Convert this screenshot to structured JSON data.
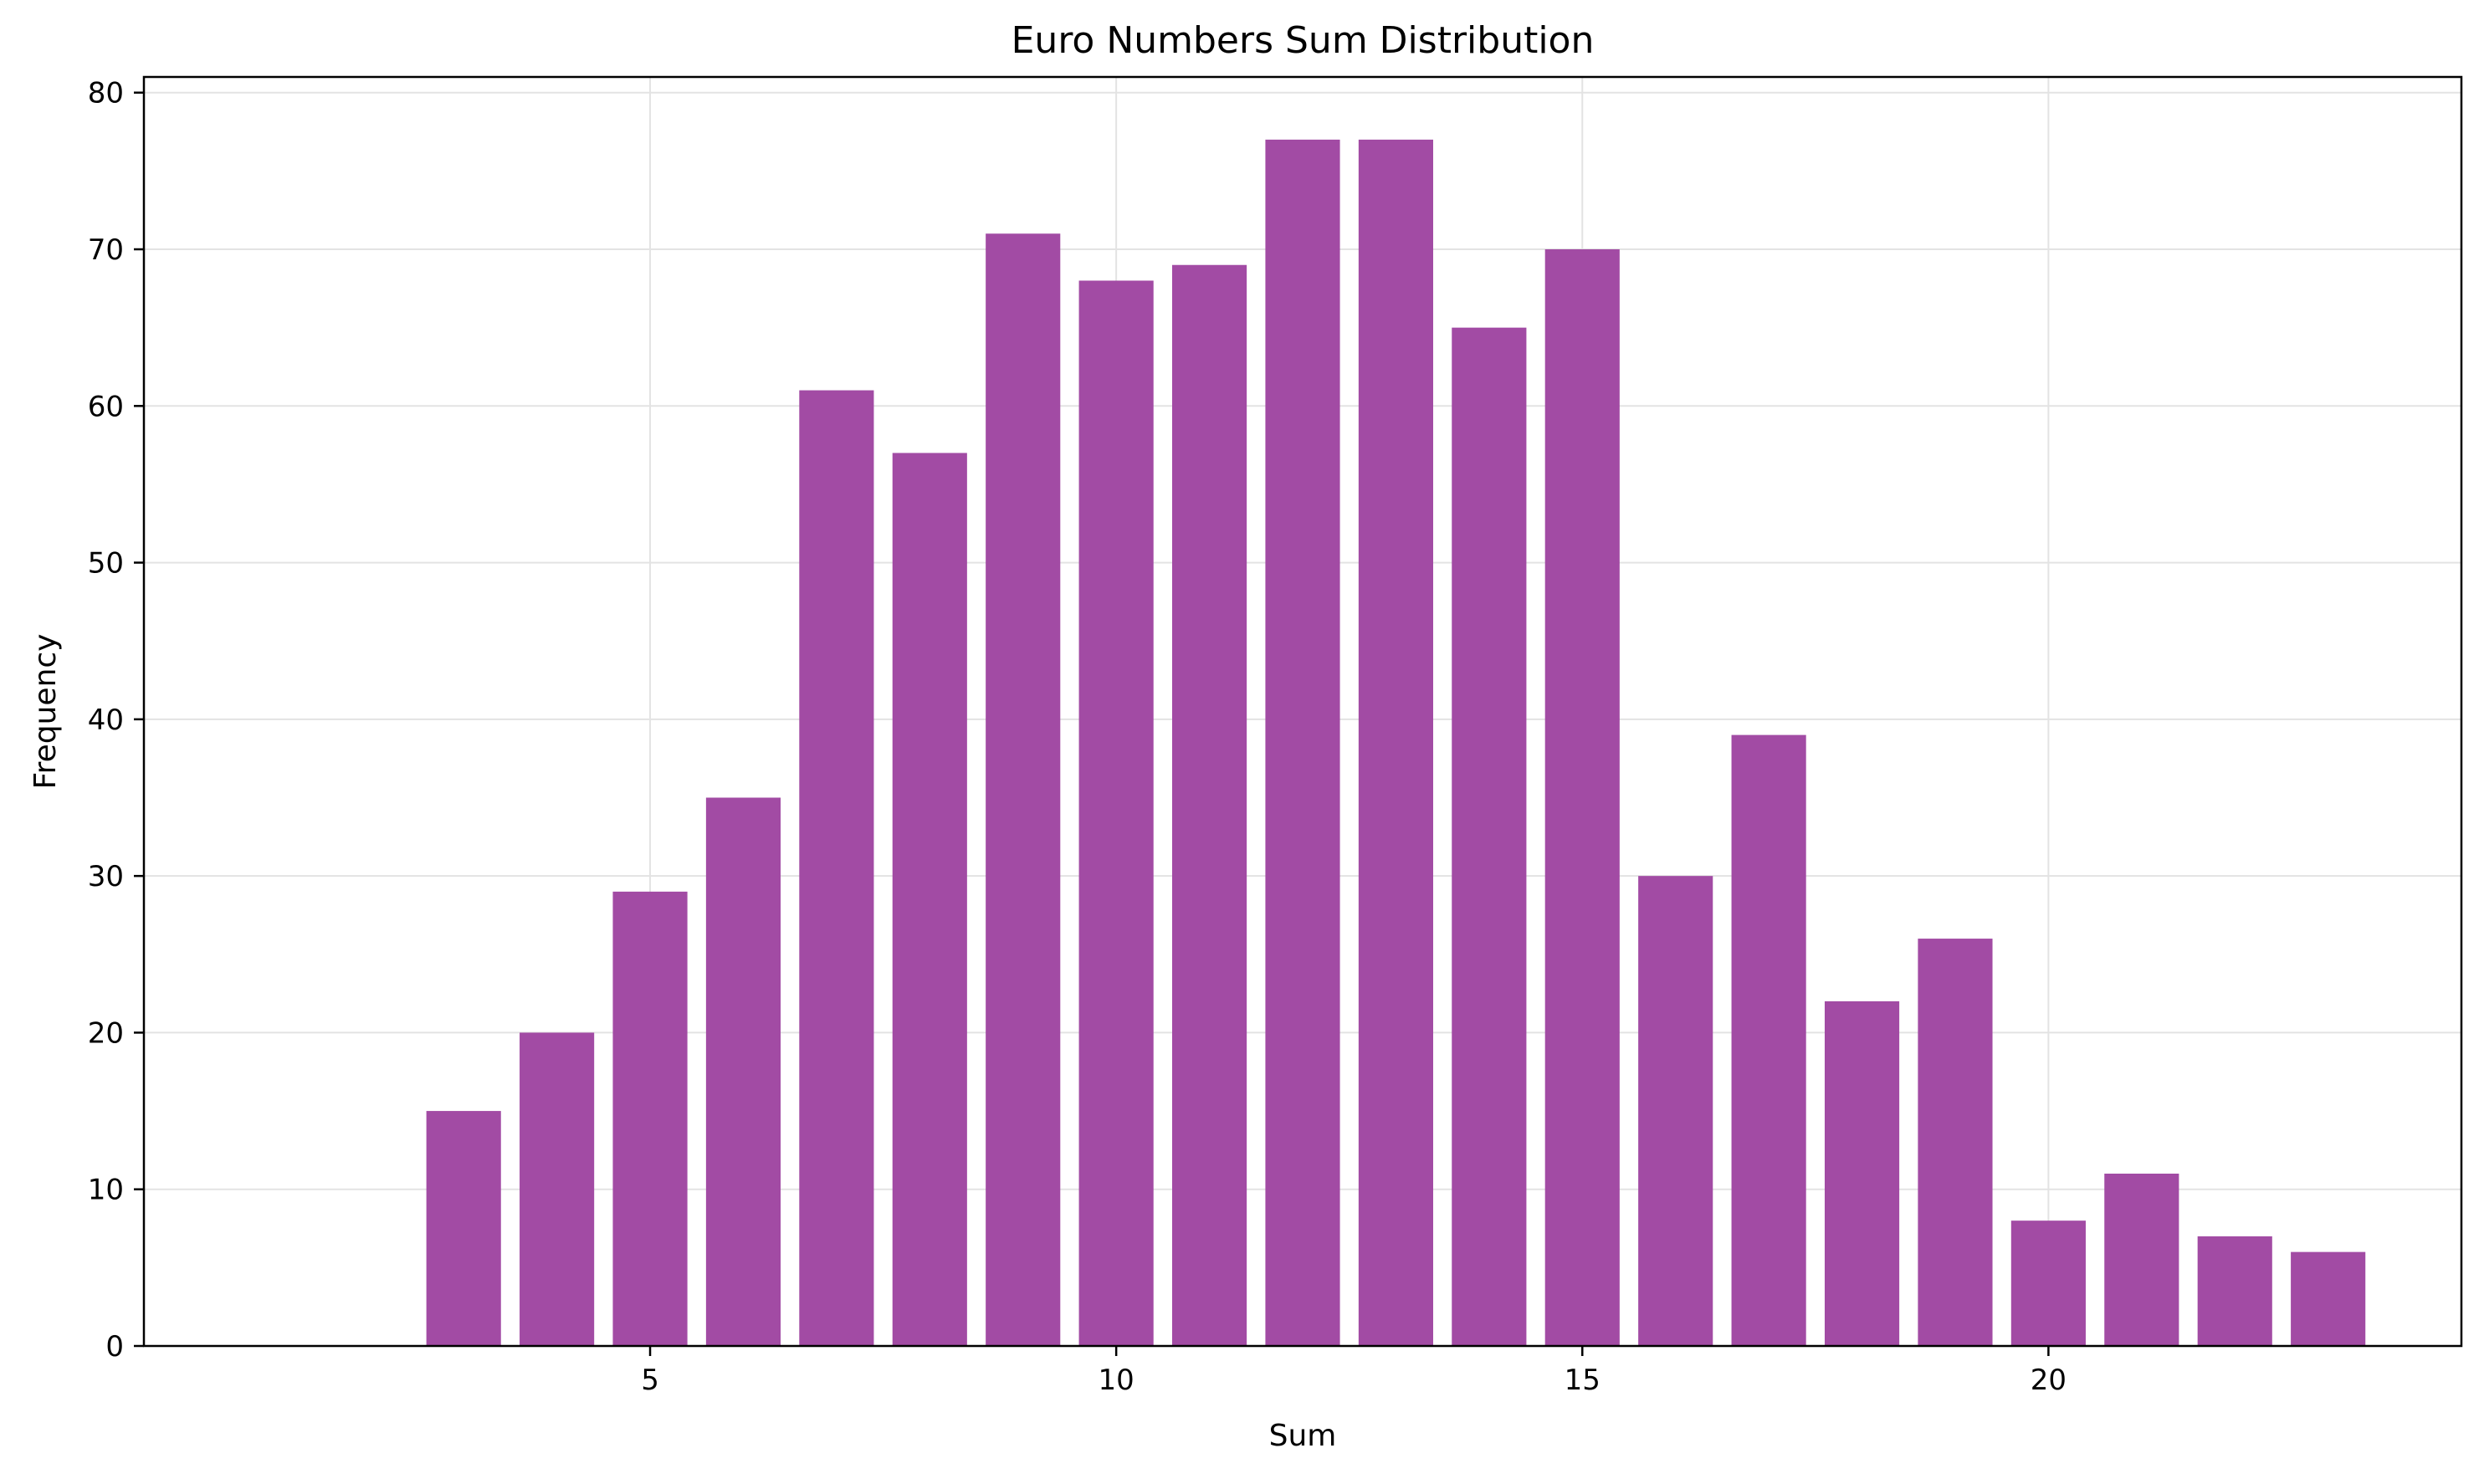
{
  "chart_data": {
    "type": "bar",
    "title": "Euro Numbers Sum Distribution",
    "xlabel": "Sum",
    "ylabel": "Frequency",
    "x": [
      3,
      4,
      5,
      6,
      7,
      8,
      9,
      10,
      11,
      12,
      13,
      14,
      15,
      16,
      17,
      18,
      19,
      20,
      21,
      22,
      23
    ],
    "values": [
      15,
      20,
      29,
      35,
      61,
      57,
      71,
      68,
      69,
      77,
      77,
      65,
      70,
      30,
      39,
      22,
      26,
      8,
      11,
      7,
      6
    ],
    "xlim": [
      -0.43,
      24.43
    ],
    "ylim": [
      0,
      81
    ],
    "xticks": [
      5,
      10,
      15,
      20
    ],
    "xtick_labels": [
      "5",
      "10",
      "15",
      "20"
    ],
    "yticks": [
      0,
      10,
      20,
      30,
      40,
      50,
      60,
      70,
      80
    ],
    "ytick_labels": [
      "0",
      "10",
      "20",
      "30",
      "40",
      "50",
      "60",
      "70",
      "80"
    ],
    "bar_color": "#a24ba4",
    "grid": true,
    "grid_color": "#e3e3e3"
  }
}
